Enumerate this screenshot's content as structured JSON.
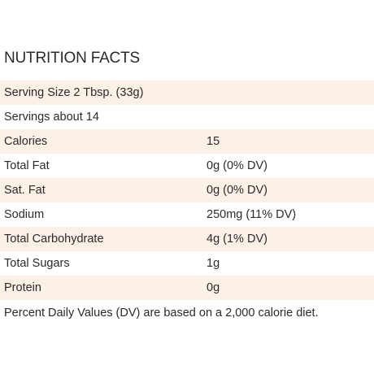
{
  "title": "NUTRITION FACTS",
  "serving_size": "Serving Size 2 Tbsp. (33g)",
  "servings": "Servings about 14",
  "nutrients": [
    {
      "label": "Calories",
      "value": "15"
    },
    {
      "label": "Total Fat",
      "value": "0g (0% DV)"
    },
    {
      "label": "Sat. Fat",
      "value": "0g (0% DV)"
    },
    {
      "label": "Sodium",
      "value": "250mg (11% DV)"
    },
    {
      "label": "Total Carbohydrate",
      "value": "4g (1% DV)"
    },
    {
      "label": "Total Sugars",
      "value": "1g"
    },
    {
      "label": "Protein",
      "value": "0g"
    }
  ],
  "footnote": "Percent Daily Values (DV) are based on a 2,000 calorie diet.",
  "colors": {
    "shaded_row": "#fbf1e7",
    "text": "#2b2b2b",
    "background": "#ffffff"
  }
}
